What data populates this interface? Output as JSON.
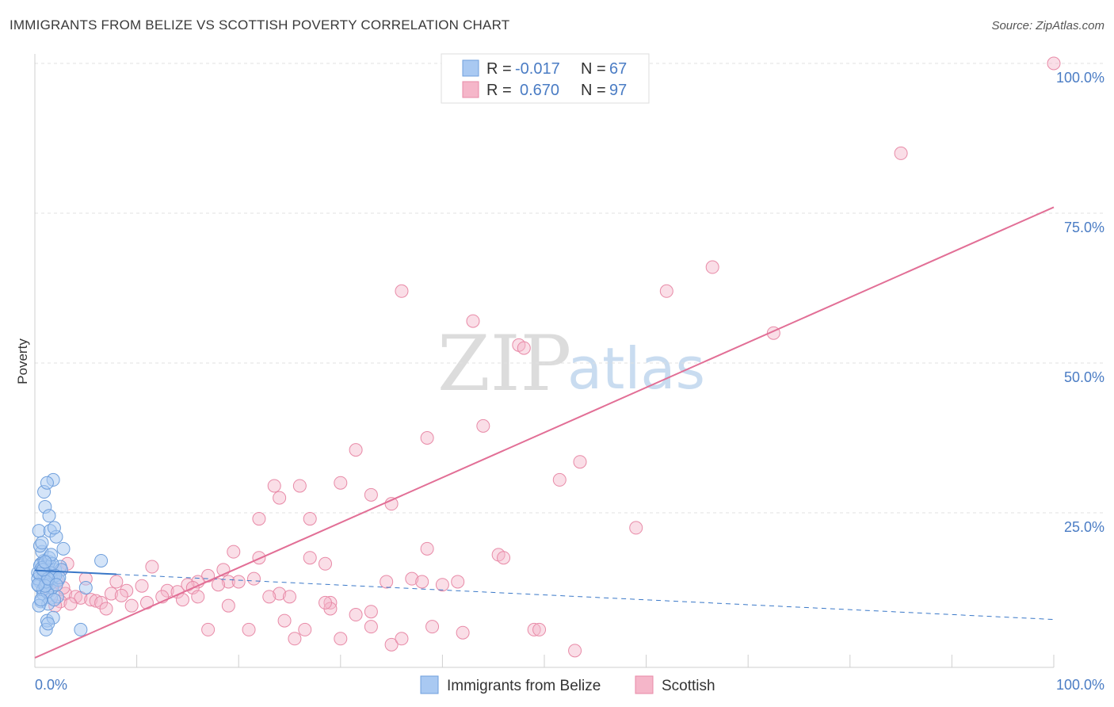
{
  "title": "IMMIGRANTS FROM BELIZE VS SCOTTISH POVERTY CORRELATION CHART",
  "source": "Source: ZipAtlas.com",
  "watermark": {
    "zip": "ZIP",
    "atlas": "atlas"
  },
  "colors": {
    "blue_fill": "#a9c9f2",
    "blue_stroke": "#6f9fdc",
    "blue_line": "#3a78c8",
    "pink_fill": "#f5b6c9",
    "pink_stroke": "#e88aa7",
    "pink_line": "#e26f96",
    "grid": "#e0e0e0",
    "axis_label": "#4a7cc4"
  },
  "legend": {
    "rows": [
      {
        "r_label": "R =",
        "r_value": "-0.017",
        "n_label": "N =",
        "n_value": "67"
      },
      {
        "r_label": "R =",
        "r_value": "0.670",
        "n_label": "N =",
        "n_value": "97"
      }
    ]
  },
  "chart_data": {
    "type": "scatter",
    "title": "IMMIGRANTS FROM BELIZE VS SCOTTISH POVERTY CORRELATION CHART",
    "xlabel": "",
    "ylabel": "Poverty",
    "xlim": [
      0,
      100
    ],
    "ylim": [
      0,
      100
    ],
    "x_tick_labels": [
      "0.0%",
      "100.0%"
    ],
    "y_tick_labels": [
      "25.0%",
      "50.0%",
      "75.0%",
      "100.0%"
    ],
    "y_ticks": [
      25,
      50,
      75,
      100
    ],
    "series": [
      {
        "name": "Immigrants from Belize",
        "r": -0.017,
        "n": 67,
        "trend": {
          "x0": 0,
          "y0": 15.4,
          "x1": 100,
          "y1": 7.2,
          "solid_until": 8
        },
        "points": [
          [
            0.5,
            13.5
          ],
          [
            0.8,
            14.5
          ],
          [
            1.2,
            15.8
          ],
          [
            0.6,
            16.5
          ],
          [
            0.4,
            12.8
          ],
          [
            1.5,
            13.2
          ],
          [
            0.9,
            17.0
          ],
          [
            0.3,
            15.0
          ],
          [
            1.8,
            14.2
          ],
          [
            1.1,
            13.0
          ],
          [
            0.7,
            18.5
          ],
          [
            1.4,
            16.8
          ],
          [
            0.5,
            19.5
          ],
          [
            2.0,
            15.5
          ],
          [
            0.8,
            11.5
          ],
          [
            1.6,
            10.8
          ],
          [
            0.6,
            10.2
          ],
          [
            1.3,
            9.8
          ],
          [
            2.2,
            11.0
          ],
          [
            0.9,
            14.8
          ],
          [
            1.7,
            12.5
          ],
          [
            2.5,
            16.0
          ],
          [
            0.4,
            22.0
          ],
          [
            1.5,
            22.0
          ],
          [
            1.0,
            26.0
          ],
          [
            0.9,
            28.5
          ],
          [
            1.8,
            30.5
          ],
          [
            1.2,
            30.0
          ],
          [
            1.4,
            24.5
          ],
          [
            2.1,
            21.0
          ],
          [
            1.9,
            22.5
          ],
          [
            0.7,
            20.0
          ],
          [
            2.8,
            19.0
          ],
          [
            1.2,
            7.0
          ],
          [
            1.8,
            7.5
          ],
          [
            1.1,
            5.5
          ],
          [
            1.3,
            6.5
          ],
          [
            4.5,
            5.5
          ],
          [
            5.0,
            12.5
          ],
          [
            6.5,
            17.0
          ],
          [
            2.6,
            15.5
          ],
          [
            0.3,
            14.0
          ],
          [
            0.5,
            16.2
          ],
          [
            1.0,
            15.2
          ],
          [
            1.6,
            14.0
          ],
          [
            2.3,
            13.8
          ],
          [
            0.8,
            12.2
          ],
          [
            1.2,
            11.8
          ],
          [
            0.4,
            9.5
          ],
          [
            0.6,
            10.5
          ],
          [
            1.9,
            10.5
          ],
          [
            0.9,
            16.0
          ],
          [
            1.5,
            15.0
          ],
          [
            2.0,
            14.5
          ],
          [
            1.1,
            13.5
          ],
          [
            0.7,
            15.8
          ],
          [
            1.4,
            17.5
          ],
          [
            0.5,
            14.8
          ],
          [
            1.0,
            12.8
          ],
          [
            2.4,
            14.2
          ],
          [
            1.7,
            16.5
          ],
          [
            0.3,
            13.0
          ],
          [
            1.3,
            14.0
          ],
          [
            0.8,
            15.5
          ],
          [
            2.1,
            13.0
          ],
          [
            1.6,
            18.0
          ],
          [
            1.0,
            16.8
          ]
        ]
      },
      {
        "name": "Scottish",
        "r": 0.67,
        "n": 97,
        "trend": {
          "x0": 0,
          "y0": 0.8,
          "x1": 100,
          "y1": 76.0
        },
        "points": [
          [
            100,
            100
          ],
          [
            85,
            85
          ],
          [
            66.5,
            66
          ],
          [
            62,
            62
          ],
          [
            72.5,
            55
          ],
          [
            36,
            62
          ],
          [
            43,
            57
          ],
          [
            47.5,
            53
          ],
          [
            48,
            52.5
          ],
          [
            44,
            39.5
          ],
          [
            38.5,
            37.5
          ],
          [
            31.5,
            35.5
          ],
          [
            53.5,
            33.5
          ],
          [
            51.5,
            30.5
          ],
          [
            30,
            30
          ],
          [
            23.5,
            29.5
          ],
          [
            26,
            29.5
          ],
          [
            24,
            27.5
          ],
          [
            33,
            28
          ],
          [
            35,
            26.5
          ],
          [
            22,
            24
          ],
          [
            27,
            24
          ],
          [
            59,
            22.5
          ],
          [
            19.5,
            18.5
          ],
          [
            38.5,
            19
          ],
          [
            45.5,
            18
          ],
          [
            46,
            17.5
          ],
          [
            27,
            17.5
          ],
          [
            28.5,
            16.5
          ],
          [
            22,
            17.5
          ],
          [
            11.5,
            16
          ],
          [
            18.5,
            15.5
          ],
          [
            17,
            14.5
          ],
          [
            21.5,
            14
          ],
          [
            19,
            13.5
          ],
          [
            20,
            13.5
          ],
          [
            16,
            13.5
          ],
          [
            15,
            13
          ],
          [
            37,
            14
          ],
          [
            38,
            13.5
          ],
          [
            15.5,
            12.5
          ],
          [
            18,
            13
          ],
          [
            10.5,
            12.8
          ],
          [
            9,
            12
          ],
          [
            13,
            12
          ],
          [
            14,
            11.8
          ],
          [
            7.5,
            11.5
          ],
          [
            8.5,
            11.2
          ],
          [
            24,
            11.5
          ],
          [
            25,
            11
          ],
          [
            3,
            11.5
          ],
          [
            4,
            11
          ],
          [
            4.5,
            10.8
          ],
          [
            5.5,
            10.5
          ],
          [
            6,
            10.3
          ],
          [
            2.5,
            10.2
          ],
          [
            6.5,
            10
          ],
          [
            12.5,
            11
          ],
          [
            14.5,
            10.5
          ],
          [
            11,
            10
          ],
          [
            16,
            11
          ],
          [
            23,
            11
          ],
          [
            29,
            10
          ],
          [
            3.5,
            9.8
          ],
          [
            2,
            9.5
          ],
          [
            7,
            9
          ],
          [
            9.5,
            9.5
          ],
          [
            19,
            9.5
          ],
          [
            29,
            9
          ],
          [
            28.5,
            10
          ],
          [
            31.5,
            8
          ],
          [
            33,
            8.5
          ],
          [
            1.5,
            12
          ],
          [
            2.2,
            13.5
          ],
          [
            1.8,
            14.5
          ],
          [
            2.8,
            12.5
          ],
          [
            17,
            5.5
          ],
          [
            21,
            5.5
          ],
          [
            24.5,
            7
          ],
          [
            26.5,
            5.5
          ],
          [
            25.5,
            4
          ],
          [
            30,
            4
          ],
          [
            33,
            6
          ],
          [
            35,
            3
          ],
          [
            36,
            4
          ],
          [
            39,
            6
          ],
          [
            42,
            5
          ],
          [
            49,
            5.5
          ],
          [
            49.5,
            5.5
          ],
          [
            53,
            2
          ],
          [
            41.5,
            13.5
          ],
          [
            40,
            13
          ],
          [
            34.5,
            13.5
          ],
          [
            8,
            13.5
          ],
          [
            5,
            14
          ],
          [
            3.2,
            16.5
          ],
          [
            2.6,
            15.5
          ]
        ]
      }
    ]
  },
  "bottom_legend": [
    {
      "label": "Immigrants from Belize"
    },
    {
      "label": "Scottish"
    }
  ]
}
